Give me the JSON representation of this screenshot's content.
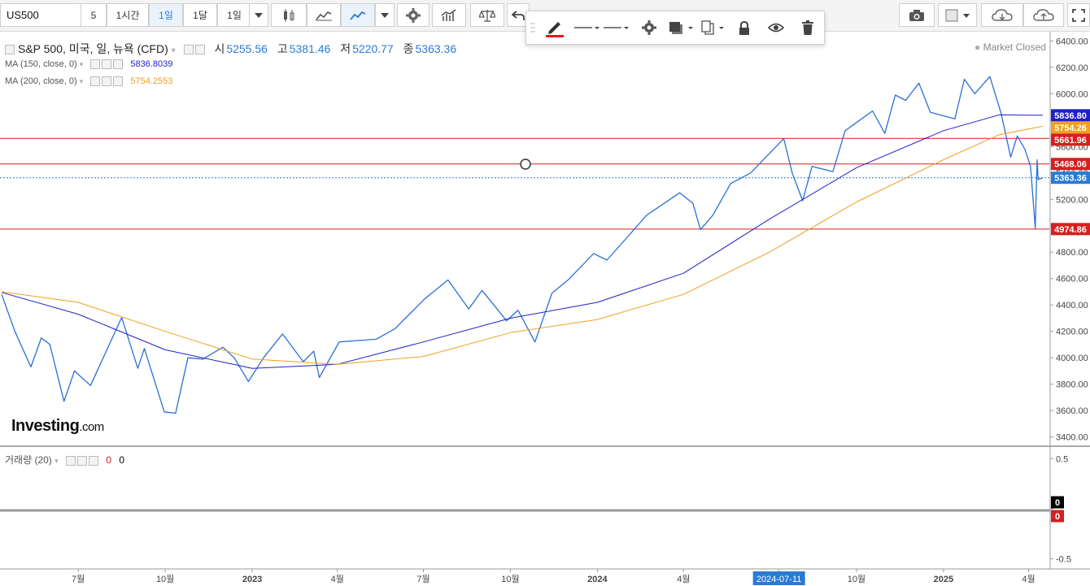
{
  "toolbar": {
    "symbol": "US500",
    "interval": "5",
    "tf_hour": "1시간",
    "tf_day": "1일",
    "tf_month": "1달",
    "tf_range": "1일",
    "icons": [
      "candle-icon",
      "line-chart-icon",
      "area-chart-icon",
      "dropdown-icon",
      "gear-icon",
      "indicators-icon",
      "compare-icon",
      "undo-icon",
      "camera-icon",
      "color-box-icon",
      "cloud-download-icon",
      "cloud-upload-icon",
      "fullscreen-icon"
    ]
  },
  "drawing_toolbar": {
    "icons": [
      "pencil-icon",
      "line-style-icon",
      "line-width-icon",
      "gear-icon",
      "fill-icon",
      "copy-icon",
      "lock-icon",
      "eye-icon",
      "trash-icon"
    ]
  },
  "legend": {
    "title": "S&P 500, 미국, 일, 뉴욕 (CFD)",
    "open_label": "시",
    "open": "5255.56",
    "high_label": "고",
    "high": "5381.46",
    "low_label": "저",
    "low": "5220.77",
    "close_label": "종",
    "close": "5363.36",
    "ma150_label": "MA (150, close, 0)",
    "ma150_value": "5836.8039",
    "ma200_label": "MA (200, close, 0)",
    "ma200_value": "5754.2553",
    "volume_label": "거래량 (20)",
    "volume_value_red": "0",
    "volume_value": "0"
  },
  "status": {
    "market": "Market Closed"
  },
  "branding": {
    "logo": "Investing",
    "logo_suffix": ".com"
  },
  "colors": {
    "price": "#2a6fd6",
    "ma150": "#1f1fc8",
    "ma200": "#f0a020",
    "hline": "#d42020",
    "accent": "#2a7bd4"
  },
  "chart_data": {
    "type": "line",
    "title": "S&P 500, 미국, 일, 뉴욕 (CFD)",
    "y_axis": {
      "ticks": [
        3400,
        3600,
        3800,
        4000,
        4200,
        4400,
        4600,
        4800,
        5000,
        5200,
        5400,
        5600,
        5800,
        6000,
        6200,
        6400
      ],
      "tick_labels": [
        "3400.00",
        "3600.00",
        "3800.00",
        "4000.00",
        "4200.00",
        "4400.00",
        "4600.00",
        "4800.00",
        "5000.00",
        "5200.00",
        "5400.00",
        "5600.00",
        "5800.00",
        "6000.00",
        "6200.00",
        "6400.00"
      ],
      "range": [
        3330,
        6470
      ]
    },
    "x_axis": {
      "tick_labels": [
        "7월",
        "10월",
        "2023",
        "4월",
        "7월",
        "10월",
        "2024",
        "4월",
        "2024-07-11",
        "10월",
        "2025",
        "4월"
      ],
      "tick_dates": [
        "2022-07-01",
        "2022-10-01",
        "2023-01-01",
        "2023-04-01",
        "2023-07-01",
        "2023-10-01",
        "2024-01-01",
        "2024-04-01",
        "2024-07-11",
        "2024-10-01",
        "2025-01-01",
        "2025-04-01"
      ],
      "highlighted": "2024-07-11",
      "range": [
        "2022-04-11",
        "2025-04-16"
      ]
    },
    "series": [
      {
        "name": "S&P 500",
        "x": [
          "2022-04-11",
          "2022-04-25",
          "2022-05-12",
          "2022-05-23",
          "2022-06-01",
          "2022-06-16",
          "2022-06-27",
          "2022-07-14",
          "2022-08-16",
          "2022-09-02",
          "2022-09-09",
          "2022-09-30",
          "2022-10-12",
          "2022-10-25",
          "2022-11-10",
          "2022-12-01",
          "2022-12-13",
          "2022-12-28",
          "2023-01-13",
          "2023-02-02",
          "2023-02-24",
          "2023-03-07",
          "2023-03-13",
          "2023-04-03",
          "2023-04-21",
          "2023-05-12",
          "2023-06-01",
          "2023-06-12",
          "2023-07-03",
          "2023-07-27",
          "2023-08-18",
          "2023-09-01",
          "2023-09-27",
          "2023-10-09",
          "2023-10-27",
          "2023-11-14",
          "2023-12-01",
          "2023-12-28",
          "2024-01-11",
          "2024-01-31",
          "2024-02-22",
          "2024-03-28",
          "2024-04-11",
          "2024-04-19",
          "2024-05-02",
          "2024-05-21",
          "2024-06-11",
          "2024-07-16",
          "2024-07-25",
          "2024-08-05",
          "2024-08-15",
          "2024-09-06",
          "2024-09-19",
          "2024-10-18",
          "2024-10-31",
          "2024-11-11",
          "2024-11-22",
          "2024-12-06",
          "2024-12-18",
          "2025-01-13",
          "2025-01-23",
          "2025-02-03",
          "2025-02-19",
          "2025-03-03",
          "2025-03-13",
          "2025-03-20",
          "2025-03-28",
          "2025-04-03",
          "2025-04-08",
          "2025-04-10",
          "2025-04-11",
          "2025-04-16"
        ],
        "y": [
          4480,
          4200,
          3930,
          4150,
          4100,
          3670,
          3900,
          3790,
          4305,
          3920,
          4070,
          3590,
          3580,
          4000,
          3990,
          4080,
          4000,
          3820,
          4000,
          4180,
          3970,
          4050,
          3850,
          4120,
          4130,
          4140,
          4220,
          4300,
          4450,
          4590,
          4370,
          4510,
          4280,
          4360,
          4120,
          4490,
          4590,
          4790,
          4740,
          4900,
          5080,
          5250,
          5170,
          4970,
          5080,
          5320,
          5400,
          5660,
          5400,
          5190,
          5450,
          5410,
          5720,
          5870,
          5700,
          5990,
          5950,
          6080,
          5860,
          5810,
          6110,
          6000,
          6130,
          5850,
          5520,
          5680,
          5580,
          5450,
          4980,
          5500,
          5350,
          5363
        ]
      },
      {
        "name": "MA (150, close, 0)",
        "x": [
          "2022-04-11",
          "2022-07-01",
          "2022-10-01",
          "2023-01-01",
          "2023-04-01",
          "2023-07-01",
          "2023-10-01",
          "2024-01-01",
          "2024-04-01",
          "2024-07-01",
          "2024-10-01",
          "2025-01-01",
          "2025-03-01",
          "2025-04-16"
        ],
        "y": [
          4495,
          4330,
          4060,
          3920,
          3950,
          4120,
          4300,
          4420,
          4640,
          5050,
          5440,
          5720,
          5840,
          5837
        ]
      },
      {
        "name": "MA (200, close, 0)",
        "x": [
          "2022-04-11",
          "2022-07-01",
          "2022-10-01",
          "2023-01-01",
          "2023-04-01",
          "2023-07-01",
          "2023-10-01",
          "2024-01-01",
          "2024-04-01",
          "2024-07-01",
          "2024-10-01",
          "2025-01-01",
          "2025-03-01",
          "2025-04-16"
        ],
        "y": [
          4500,
          4420,
          4200,
          3990,
          3950,
          4010,
          4190,
          4290,
          4480,
          4800,
          5180,
          5500,
          5690,
          5754
        ]
      }
    ],
    "horizontal_lines": [
      5661.96,
      5468.06,
      4974.86
    ],
    "last_price": 5363.36,
    "price_labels": [
      {
        "label": "5836.80",
        "value": 5836.8,
        "color": "#1f1fc8"
      },
      {
        "label": "5754.26",
        "value": 5754.26,
        "color": "#f0a020"
      },
      {
        "label": "5661.96",
        "value": 5661.96,
        "color": "#d42020"
      },
      {
        "label": "5468.06",
        "value": 5468.06,
        "color": "#d42020"
      },
      {
        "label": "5363.36",
        "value": 5363.36,
        "color": "#2a7bd4"
      },
      {
        "label": "4974.86",
        "value": 4974.86,
        "color": "#d42020"
      }
    ],
    "volume_axis": {
      "tick_labels": [
        "0.5",
        "0",
        "-0.5"
      ],
      "ticks": [
        0.5,
        0,
        -0.5
      ],
      "range": [
        -0.6,
        0.6
      ]
    },
    "volume_labels": [
      {
        "label": "0",
        "color": "#000000"
      },
      {
        "label": "0",
        "color": "#d42020"
      }
    ]
  }
}
